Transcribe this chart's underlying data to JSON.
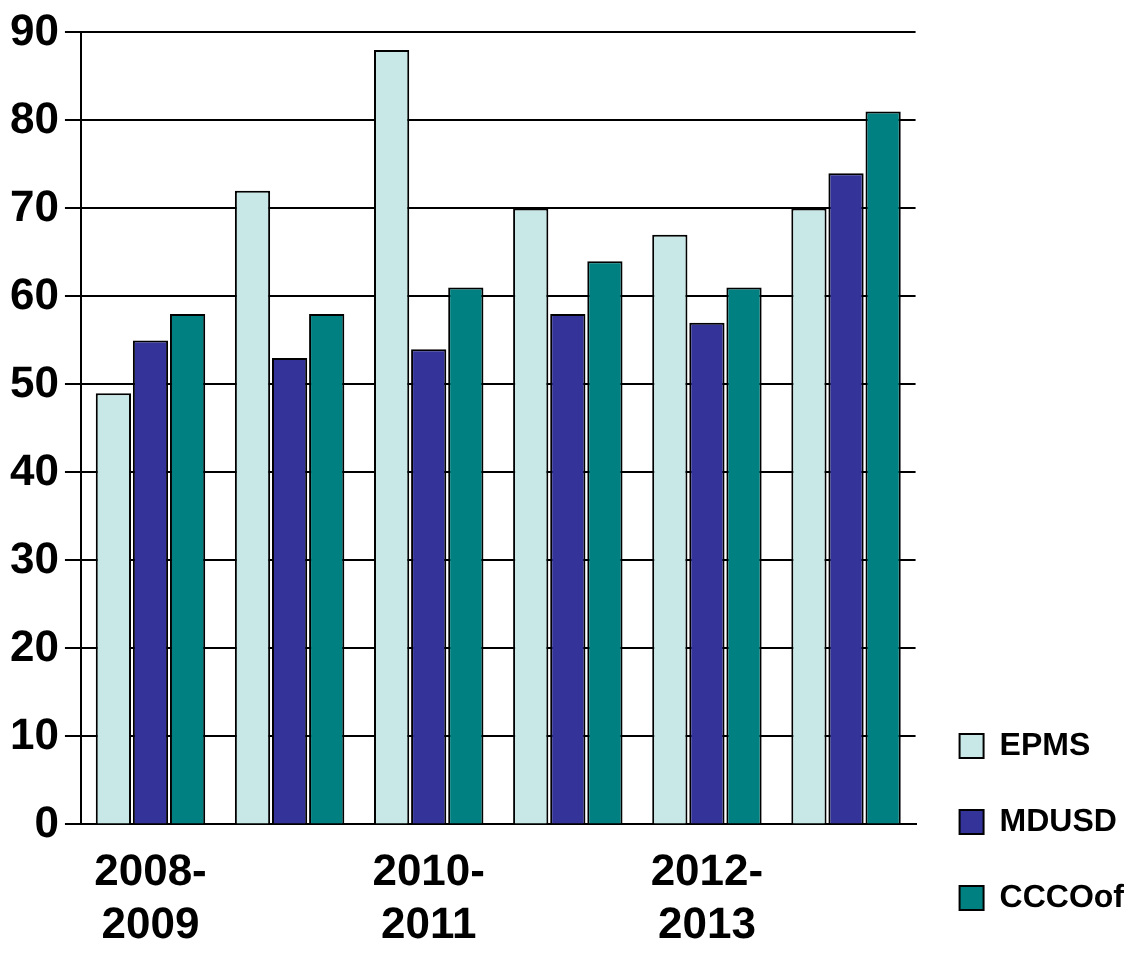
{
  "chart_data": {
    "type": "bar",
    "categories": [
      "2008-2009",
      null,
      "2010-2011",
      null,
      "2012-2013",
      null
    ],
    "series": [
      {
        "name": "EPMS",
        "color": "#c8e8e8",
        "values": [
          49,
          72,
          88,
          70,
          67,
          70
        ]
      },
      {
        "name": "MDUSD",
        "color": "#333399",
        "values": [
          55,
          53,
          54,
          58,
          57,
          74
        ]
      },
      {
        "name": "CCCOof",
        "color": "#008080",
        "values": [
          58,
          58,
          61,
          64,
          61,
          81
        ]
      }
    ],
    "ylim": [
      0,
      90
    ],
    "yticks": [
      0,
      10,
      20,
      30,
      40,
      50,
      60,
      70,
      80,
      90
    ],
    "grid": "y",
    "legend": "bottom right"
  }
}
